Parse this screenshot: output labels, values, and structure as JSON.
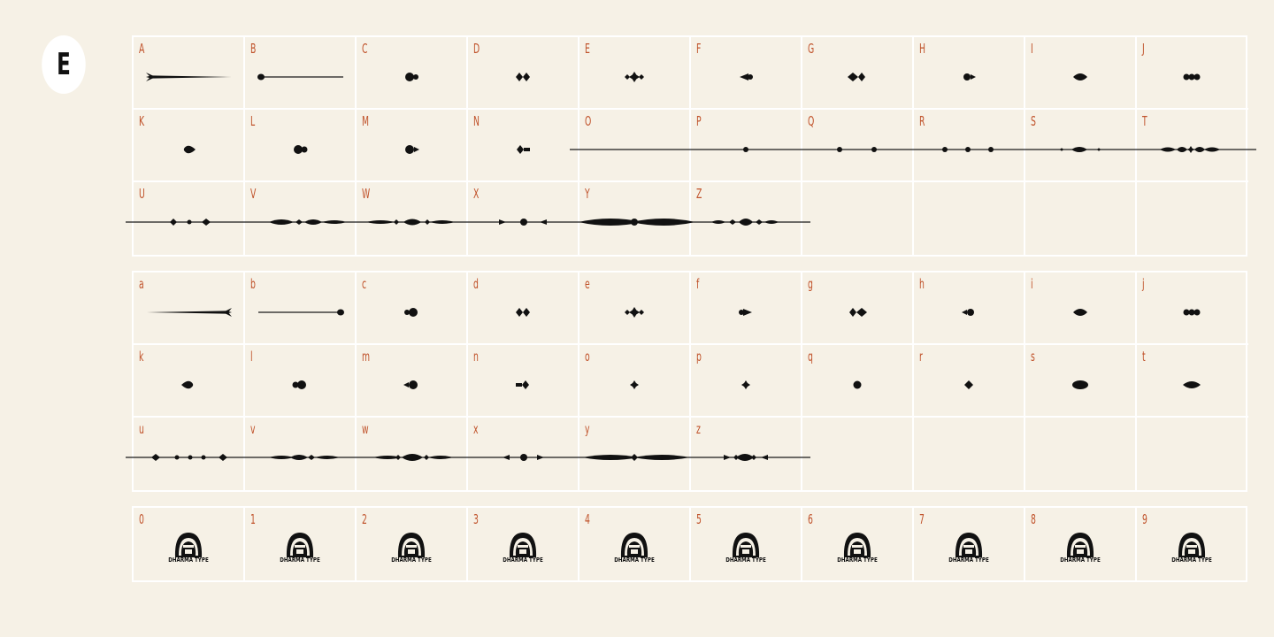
{
  "badge": {
    "letter": "E"
  },
  "colors": {
    "background": "#f6f1e6",
    "grid_line": "#ffffff",
    "label": "#c0522a",
    "glyph": "#111111"
  },
  "uppercase": {
    "labels": [
      "A",
      "B",
      "C",
      "D",
      "E",
      "F",
      "G",
      "H",
      "I",
      "J",
      "K",
      "L",
      "M",
      "N",
      "O",
      "P",
      "Q",
      "R",
      "S",
      "T",
      "U",
      "V",
      "W",
      "X",
      "Y",
      "Z"
    ]
  },
  "lowercase": {
    "labels": [
      "a",
      "b",
      "c",
      "d",
      "e",
      "f",
      "g",
      "h",
      "i",
      "j",
      "k",
      "l",
      "m",
      "n",
      "o",
      "p",
      "q",
      "r",
      "s",
      "t",
      "u",
      "v",
      "w",
      "x",
      "y",
      "z"
    ]
  },
  "numbers": {
    "labels": [
      "0",
      "1",
      "2",
      "3",
      "4",
      "5",
      "6",
      "7",
      "8",
      "9"
    ],
    "logo_text": "DHARMA TYPE"
  }
}
